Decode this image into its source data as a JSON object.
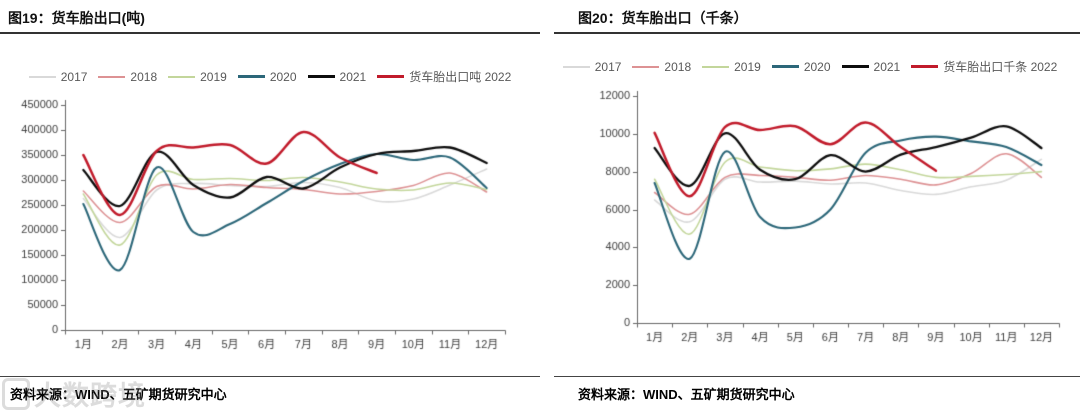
{
  "watermark": "大数跨境",
  "source_note": "资料来源：WIND、五矿期货研究中心",
  "chart_data": [
    {
      "type": "line",
      "title": "图19：货车胎出口(吨)",
      "x": [
        "1月",
        "2月",
        "3月",
        "4月",
        "5月",
        "6月",
        "7月",
        "8月",
        "9月",
        "10月",
        "11月",
        "12月"
      ],
      "ylim": [
        0,
        450000
      ],
      "ytick_step": 50000,
      "grid": false,
      "legend_position": "top",
      "series": [
        {
          "name": "2017",
          "color": "#d9d9d9",
          "values": [
            263000,
            185000,
            280000,
            293000,
            289000,
            287000,
            295000,
            285000,
            258000,
            262000,
            290000,
            322000
          ]
        },
        {
          "name": "2018",
          "color": "#dd9294",
          "values": [
            278000,
            215000,
            287000,
            282000,
            291000,
            285000,
            281000,
            272000,
            277000,
            289000,
            314000,
            276000
          ]
        },
        {
          "name": "2019",
          "color": "#c3d69b",
          "values": [
            272000,
            170000,
            310000,
            301000,
            303000,
            299000,
            305000,
            296000,
            282000,
            280000,
            294000,
            281000
          ]
        },
        {
          "name": "2020",
          "color": "#2c6779",
          "values": [
            252000,
            120000,
            325000,
            196000,
            212000,
            254000,
            298000,
            332000,
            352000,
            340000,
            345000,
            284000
          ]
        },
        {
          "name": "2021",
          "color": "#0d0d0d",
          "values": [
            320000,
            248000,
            356000,
            290000,
            265000,
            306000,
            283000,
            325000,
            352000,
            358000,
            365000,
            334000
          ]
        },
        {
          "name": "货车胎出口吨 2022",
          "color": "#c11b2b",
          "values": [
            350000,
            230000,
            358000,
            365000,
            370000,
            333000,
            396000,
            345000,
            314000
          ]
        }
      ]
    },
    {
      "type": "line",
      "title": "图20：货车胎出口（千条）",
      "x": [
        "1月",
        "2月",
        "3月",
        "4月",
        "5月",
        "6月",
        "7月",
        "8月",
        "9月",
        "10月",
        "11月",
        "12月"
      ],
      "ylim": [
        0,
        12000
      ],
      "ytick_step": 2000,
      "grid": false,
      "legend_position": "top",
      "series": [
        {
          "name": "2017",
          "color": "#d9d9d9",
          "values": [
            6500,
            5350,
            7600,
            7450,
            7500,
            7350,
            7400,
            7000,
            6800,
            7200,
            7550,
            8650
          ]
        },
        {
          "name": "2018",
          "color": "#dd9294",
          "values": [
            6900,
            5750,
            7700,
            7800,
            7700,
            7550,
            7800,
            7600,
            7300,
            7900,
            8950,
            7700
          ]
        },
        {
          "name": "2019",
          "color": "#c3d69b",
          "values": [
            7600,
            4700,
            8500,
            8250,
            8050,
            8150,
            8400,
            8100,
            7700,
            7750,
            7850,
            8000
          ]
        },
        {
          "name": "2020",
          "color": "#2c6779",
          "values": [
            7400,
            3400,
            9050,
            5600,
            5050,
            6000,
            9000,
            9650,
            9850,
            9600,
            9300,
            8350
          ]
        },
        {
          "name": "2021",
          "color": "#0d0d0d",
          "values": [
            9250,
            7250,
            10030,
            8100,
            7600,
            8870,
            8000,
            8900,
            9300,
            9800,
            10400,
            9250
          ]
        },
        {
          "name": "货车胎出口千条 2022",
          "color": "#c11b2b",
          "values": [
            10050,
            6700,
            10350,
            10200,
            10400,
            9450,
            10600,
            9300,
            8050
          ]
        }
      ]
    }
  ]
}
